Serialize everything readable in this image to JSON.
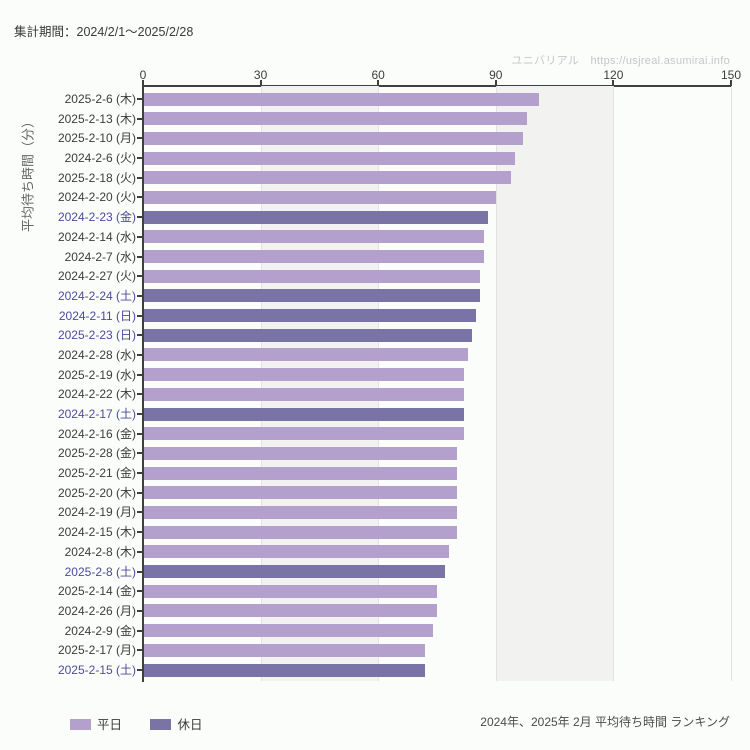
{
  "header": {
    "title": "集計期間：2024/2/1～2025/2/28",
    "watermark": "ユニバリアル　https://usjreal.asumirai.info"
  },
  "footer": {
    "caption": "2024年、2025年 2月 平均待ち時間 ランキング"
  },
  "colors": {
    "weekday_bar": "#b3a0cd",
    "holiday_bar": "#7a73a6",
    "holiday_label": "#4c4a9e",
    "weekday_label": "#3c3c3c",
    "band_gray": "#f2f3f1"
  },
  "chart_data": {
    "type": "bar",
    "orientation": "horizontal",
    "ylabel": "平均待ち時間（分）",
    "xlabel": "",
    "xlim": [
      0,
      150
    ],
    "xticks": [
      0,
      30,
      60,
      90,
      120,
      150
    ],
    "grid": "vertical-bands",
    "legend_position": "bottom-left",
    "legend": [
      {
        "label": "平日",
        "color": "#b3a0cd"
      },
      {
        "label": "休日",
        "color": "#7a73a6"
      }
    ],
    "bars": [
      {
        "label": "2025-2-6 (木)",
        "value": 101,
        "holiday": false
      },
      {
        "label": "2025-2-13 (木)",
        "value": 98,
        "holiday": false
      },
      {
        "label": "2025-2-10 (月)",
        "value": 97,
        "holiday": false
      },
      {
        "label": "2024-2-6 (火)",
        "value": 95,
        "holiday": false
      },
      {
        "label": "2025-2-18 (火)",
        "value": 94,
        "holiday": false
      },
      {
        "label": "2024-2-20 (火)",
        "value": 90,
        "holiday": false
      },
      {
        "label": "2024-2-23 (金)",
        "value": 88,
        "holiday": true
      },
      {
        "label": "2024-2-14 (水)",
        "value": 87,
        "holiday": false
      },
      {
        "label": "2024-2-7 (水)",
        "value": 87,
        "holiday": false
      },
      {
        "label": "2024-2-27 (火)",
        "value": 86,
        "holiday": false
      },
      {
        "label": "2024-2-24 (土)",
        "value": 86,
        "holiday": true
      },
      {
        "label": "2024-2-11 (日)",
        "value": 85,
        "holiday": true
      },
      {
        "label": "2025-2-23 (日)",
        "value": 84,
        "holiday": true
      },
      {
        "label": "2024-2-28 (水)",
        "value": 83,
        "holiday": false
      },
      {
        "label": "2025-2-19 (水)",
        "value": 82,
        "holiday": false
      },
      {
        "label": "2024-2-22 (木)",
        "value": 82,
        "holiday": false
      },
      {
        "label": "2024-2-17 (土)",
        "value": 82,
        "holiday": true
      },
      {
        "label": "2024-2-16 (金)",
        "value": 82,
        "holiday": false
      },
      {
        "label": "2025-2-28 (金)",
        "value": 80,
        "holiday": false
      },
      {
        "label": "2025-2-21 (金)",
        "value": 80,
        "holiday": false
      },
      {
        "label": "2025-2-20 (木)",
        "value": 80,
        "holiday": false
      },
      {
        "label": "2024-2-19 (月)",
        "value": 80,
        "holiday": false
      },
      {
        "label": "2024-2-15 (木)",
        "value": 80,
        "holiday": false
      },
      {
        "label": "2024-2-8 (木)",
        "value": 78,
        "holiday": false
      },
      {
        "label": "2025-2-8 (土)",
        "value": 77,
        "holiday": true
      },
      {
        "label": "2025-2-14 (金)",
        "value": 75,
        "holiday": false
      },
      {
        "label": "2024-2-26 (月)",
        "value": 75,
        "holiday": false
      },
      {
        "label": "2024-2-9 (金)",
        "value": 74,
        "holiday": false
      },
      {
        "label": "2025-2-17 (月)",
        "value": 72,
        "holiday": false
      },
      {
        "label": "2025-2-15 (土)",
        "value": 72,
        "holiday": true
      }
    ]
  }
}
